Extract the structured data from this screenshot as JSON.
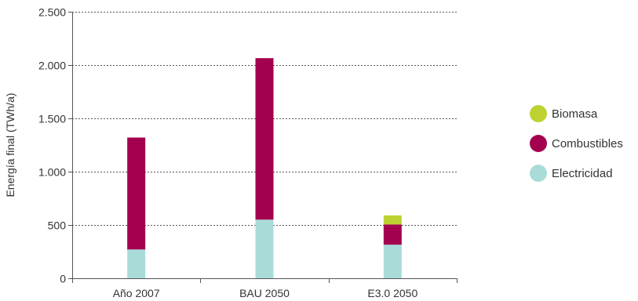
{
  "chart_data": {
    "type": "bar",
    "stacked": true,
    "categories": [
      "Año 2007",
      "BAU 2050",
      "E3.0 2050"
    ],
    "series": [
      {
        "name": "Electricidad",
        "values": [
          270,
          550,
          315
        ],
        "color": "#a9dcd9"
      },
      {
        "name": "Combustibles",
        "values": [
          1050,
          1515,
          190
        ],
        "color": "#a3004f"
      },
      {
        "name": "Biomasa",
        "values": [
          0,
          0,
          85
        ],
        "color": "#bdd232"
      }
    ],
    "legend_order": [
      "Biomasa",
      "Combustibles",
      "Electricidad"
    ],
    "title": "",
    "xlabel": "",
    "ylabel": "Energía final (TWh/a)",
    "ylim": [
      0,
      2500
    ],
    "yticks": [
      0,
      500,
      1000,
      1500,
      2000,
      2500
    ],
    "ytick_labels": [
      "0",
      "500",
      "1.000",
      "1.500",
      "2.000",
      "2.500"
    ],
    "grid": "dotted horizontal",
    "legend_position": "right"
  }
}
